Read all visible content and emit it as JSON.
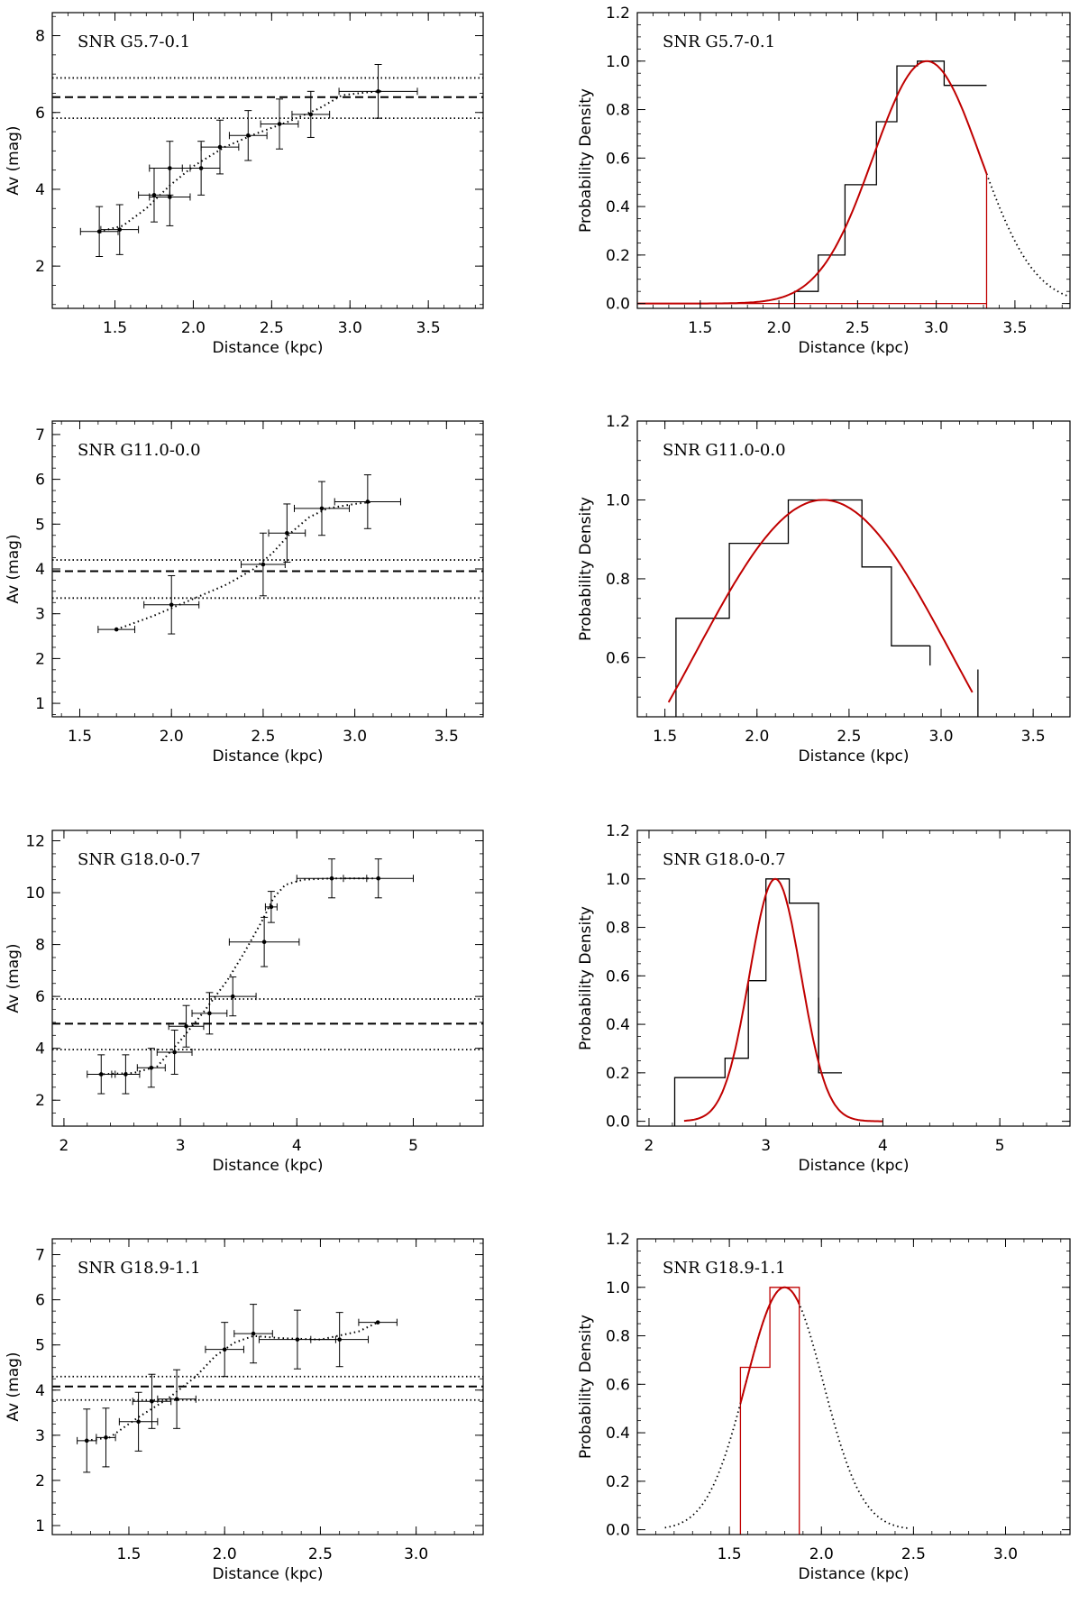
{
  "chart_data": [
    {
      "id": "g57_av",
      "type": "scatter",
      "title": "",
      "annotation": "SNR G5.7-0.1",
      "xlabel": "Distance (kpc)",
      "ylabel": "Av (mag)",
      "xlim": [
        1.1,
        3.85
      ],
      "ylim": [
        0.9,
        8.6
      ],
      "xticks": [
        1.5,
        2.0,
        2.5,
        3.0,
        3.5
      ],
      "xtick_labels": [
        "1.5",
        "2.0",
        "2.5",
        "3.0",
        "3.5"
      ],
      "yticks": [
        2,
        4,
        6,
        8
      ],
      "ytick_labels": [
        "2",
        "4",
        "6",
        "8"
      ],
      "xminor": 0.1,
      "yminor": 0.5,
      "hlines": [
        {
          "y": 6.4,
          "style": "dashed"
        },
        {
          "y": 6.9,
          "style": "dotted"
        },
        {
          "y": 5.85,
          "style": "dotted"
        }
      ],
      "points": [
        {
          "x": 1.4,
          "y": 2.9,
          "xerr": 0.12,
          "yerr": 0.65
        },
        {
          "x": 1.53,
          "y": 2.95,
          "xerr": 0.12,
          "yerr": 0.65
        },
        {
          "x": 1.75,
          "y": 3.85,
          "xerr": 0.1,
          "yerr": 0.7
        },
        {
          "x": 1.85,
          "y": 3.8,
          "xerr": 0.13,
          "yerr": 0.75
        },
        {
          "x": 1.85,
          "y": 4.55,
          "xerr": 0.13,
          "yerr": 0.7
        },
        {
          "x": 2.05,
          "y": 4.55,
          "xerr": 0.12,
          "yerr": 0.7
        },
        {
          "x": 2.17,
          "y": 5.1,
          "xerr": 0.12,
          "yerr": 0.7
        },
        {
          "x": 2.35,
          "y": 5.4,
          "xerr": 0.12,
          "yerr": 0.65
        },
        {
          "x": 2.55,
          "y": 5.7,
          "xerr": 0.12,
          "yerr": 0.65
        },
        {
          "x": 2.75,
          "y": 5.95,
          "xerr": 0.12,
          "yerr": 0.6
        },
        {
          "x": 3.18,
          "y": 6.55,
          "xerr": 0.25,
          "yerr": 0.7
        }
      ],
      "model_curve": {
        "style": "dotted",
        "x": [
          1.4,
          1.55,
          1.7,
          1.85,
          2.0,
          2.2,
          2.4,
          2.6,
          2.8,
          2.95,
          3.1,
          3.2
        ],
        "y": [
          2.9,
          3.05,
          3.5,
          4.1,
          4.6,
          5.1,
          5.45,
          5.75,
          6.1,
          6.45,
          6.52,
          6.55
        ]
      }
    },
    {
      "id": "g57_pdf",
      "type": "step",
      "title": "",
      "annotation": "SNR G5.7-0.1",
      "xlabel": "Distance (kpc)",
      "ylabel": "Probability Density",
      "xlim": [
        1.1,
        3.85
      ],
      "ylim": [
        -0.02,
        1.2
      ],
      "xticks": [
        1.5,
        2.0,
        2.5,
        3.0,
        3.5
      ],
      "xtick_labels": [
        "1.5",
        "2.0",
        "2.5",
        "3.0",
        "3.5"
      ],
      "yticks": [
        0.0,
        0.2,
        0.4,
        0.6,
        0.8,
        1.0,
        1.2
      ],
      "ytick_labels": [
        "0.0",
        "0.2",
        "0.4",
        "0.6",
        "0.8",
        "1.0",
        "1.2"
      ],
      "xminor": 0.1,
      "yminor": 0.05,
      "histogram": {
        "edges": [
          2.1,
          2.25,
          2.42,
          2.62,
          2.75,
          2.88,
          3.05,
          3.32
        ],
        "values": [
          0.05,
          0.2,
          0.49,
          0.75,
          0.98,
          1.0,
          0.9
        ]
      },
      "gaussian": {
        "mu": 2.94,
        "sigma": 0.34,
        "amp": 1.0,
        "red_range": [
          1.1,
          3.32
        ],
        "dotted_range": [
          3.32,
          3.85
        ],
        "red_drop_x": 3.32
      }
    },
    {
      "id": "g110_av",
      "type": "scatter",
      "title": "",
      "annotation": "SNR G11.0-0.0",
      "xlabel": "Distance (kpc)",
      "ylabel": "Av (mag)",
      "xlim": [
        1.35,
        3.7
      ],
      "ylim": [
        0.7,
        7.3
      ],
      "xticks": [
        1.5,
        2.0,
        2.5,
        3.0,
        3.5
      ],
      "xtick_labels": [
        "1.5",
        "2.0",
        "2.5",
        "3.0",
        "3.5"
      ],
      "yticks": [
        1,
        2,
        3,
        4,
        5,
        6,
        7
      ],
      "ytick_labels": [
        "1",
        "2",
        "3",
        "4",
        "5",
        "6",
        "7"
      ],
      "xminor": 0.1,
      "yminor": 0.25,
      "hlines": [
        {
          "y": 3.95,
          "style": "dashed"
        },
        {
          "y": 4.2,
          "style": "dotted"
        },
        {
          "y": 3.35,
          "style": "dotted"
        }
      ],
      "points": [
        {
          "x": 1.7,
          "y": 2.65,
          "xerr": 0.1,
          "yerr": 0.0
        },
        {
          "x": 2.0,
          "y": 3.2,
          "xerr": 0.15,
          "yerr": 0.65
        },
        {
          "x": 2.5,
          "y": 4.1,
          "xerr": 0.12,
          "yerr": 0.7
        },
        {
          "x": 2.63,
          "y": 4.8,
          "xerr": 0.1,
          "yerr": 0.65
        },
        {
          "x": 2.82,
          "y": 5.35,
          "xerr": 0.15,
          "yerr": 0.6
        },
        {
          "x": 3.07,
          "y": 5.5,
          "xerr": 0.18,
          "yerr": 0.6
        }
      ],
      "model_curve": {
        "style": "dotted",
        "x": [
          1.7,
          1.9,
          2.1,
          2.3,
          2.45,
          2.55,
          2.65,
          2.75,
          2.85,
          3.0,
          3.1
        ],
        "y": [
          2.65,
          2.95,
          3.3,
          3.65,
          4.0,
          4.35,
          4.8,
          5.15,
          5.35,
          5.45,
          5.5
        ]
      }
    },
    {
      "id": "g110_pdf",
      "type": "step",
      "title": "",
      "annotation": "SNR G11.0-0.0",
      "xlabel": "Distance (kpc)",
      "ylabel": "Probability Density",
      "xlim": [
        1.35,
        3.7
      ],
      "ylim": [
        0.45,
        1.2
      ],
      "xticks": [
        1.5,
        2.0,
        2.5,
        3.0,
        3.5
      ],
      "xtick_labels": [
        "1.5",
        "2.0",
        "2.5",
        "3.0",
        "3.5"
      ],
      "yticks": [
        0.6,
        0.8,
        1.0,
        1.2
      ],
      "ytick_labels": [
        "0.6",
        "0.8",
        "1.0",
        "1.2"
      ],
      "xminor": 0.1,
      "yminor": 0.05,
      "histogram": {
        "edges": [
          1.56,
          1.85,
          2.17,
          2.57,
          2.73,
          2.94
        ],
        "values": [
          0.7,
          0.89,
          1.0,
          0.83,
          0.63
        ],
        "extra_bars": [
          {
            "x": 2.94,
            "y0": 0.58,
            "y1": 0.63
          },
          {
            "x": 3.2,
            "y0": 0.45,
            "y1": 0.57
          }
        ]
      },
      "gaussian": {
        "mu": 2.36,
        "sigma": 0.7,
        "amp": 1.0,
        "red_range": [
          1.52,
          3.17
        ]
      }
    },
    {
      "id": "g180_av",
      "type": "scatter",
      "title": "",
      "annotation": "SNR G18.0-0.7",
      "xlabel": "Distance (kpc)",
      "ylabel": "Av (mag)",
      "xlim": [
        1.9,
        5.6
      ],
      "ylim": [
        1.0,
        12.4
      ],
      "xticks": [
        2,
        3,
        4,
        5
      ],
      "xtick_labels": [
        "2",
        "3",
        "4",
        "5"
      ],
      "yticks": [
        2,
        4,
        6,
        8,
        10,
        12
      ],
      "ytick_labels": [
        "2",
        "4",
        "6",
        "8",
        "10",
        "12"
      ],
      "xminor": 0.2,
      "yminor": 0.5,
      "hlines": [
        {
          "y": 4.95,
          "style": "dashed"
        },
        {
          "y": 5.9,
          "style": "dotted"
        },
        {
          "y": 3.95,
          "style": "dotted"
        }
      ],
      "points": [
        {
          "x": 2.32,
          "y": 3.0,
          "xerr": 0.12,
          "yerr": 0.75
        },
        {
          "x": 2.53,
          "y": 3.0,
          "xerr": 0.12,
          "yerr": 0.75
        },
        {
          "x": 2.75,
          "y": 3.25,
          "xerr": 0.12,
          "yerr": 0.75
        },
        {
          "x": 2.95,
          "y": 3.85,
          "xerr": 0.15,
          "yerr": 0.85
        },
        {
          "x": 3.05,
          "y": 4.85,
          "xerr": 0.15,
          "yerr": 0.8
        },
        {
          "x": 3.25,
          "y": 5.35,
          "xerr": 0.15,
          "yerr": 0.8
        },
        {
          "x": 3.45,
          "y": 6.0,
          "xerr": 0.2,
          "yerr": 0.75
        },
        {
          "x": 3.72,
          "y": 8.1,
          "xerr": 0.3,
          "yerr": 0.95
        },
        {
          "x": 3.78,
          "y": 9.45,
          "xerr": 0.05,
          "yerr": 0.6
        },
        {
          "x": 4.3,
          "y": 10.55,
          "xerr": 0.3,
          "yerr": 0.75
        },
        {
          "x": 4.7,
          "y": 10.55,
          "xerr": 0.3,
          "yerr": 0.75
        }
      ],
      "model_curve": {
        "style": "dotted",
        "x": [
          2.3,
          2.6,
          2.8,
          3.0,
          3.2,
          3.4,
          3.55,
          3.7,
          3.8,
          3.9,
          4.05,
          4.3,
          4.7
        ],
        "y": [
          3.0,
          3.05,
          3.3,
          4.3,
          5.4,
          6.6,
          7.7,
          8.9,
          9.8,
          10.3,
          10.5,
          10.55,
          10.55
        ]
      }
    },
    {
      "id": "g180_pdf",
      "type": "step",
      "title": "",
      "annotation": "SNR G18.0-0.7",
      "xlabel": "Distance (kpc)",
      "ylabel": "Probability Density",
      "xlim": [
        1.9,
        5.6
      ],
      "ylim": [
        -0.02,
        1.2
      ],
      "xticks": [
        2,
        3,
        4,
        5
      ],
      "xtick_labels": [
        "2",
        "3",
        "4",
        "5"
      ],
      "yticks": [
        0.0,
        0.2,
        0.4,
        0.6,
        0.8,
        1.0,
        1.2
      ],
      "ytick_labels": [
        "0.0",
        "0.2",
        "0.4",
        "0.6",
        "0.8",
        "1.0",
        "1.2"
      ],
      "xminor": 0.2,
      "yminor": 0.05,
      "histogram": {
        "edges": [
          2.22,
          2.45,
          2.65,
          2.85,
          3.0,
          3.2,
          3.45,
          3.65
        ],
        "values": [
          0.18,
          0.18,
          0.26,
          0.58,
          1.0,
          0.9,
          0.2
        ],
        "extra_bars": [
          {
            "x": 3.45,
            "y0": 0.2,
            "y1": 0.51
          }
        ]
      },
      "gaussian": {
        "mu": 3.08,
        "sigma": 0.22,
        "amp": 1.0,
        "red_range": [
          2.3,
          4.0
        ]
      }
    },
    {
      "id": "g189_av",
      "type": "scatter",
      "title": "",
      "annotation": "SNR G18.9-1.1",
      "xlabel": "Distance (kpc)",
      "ylabel": "Av (mag)",
      "xlim": [
        1.1,
        3.35
      ],
      "ylim": [
        0.8,
        7.35
      ],
      "xticks": [
        1.5,
        2.0,
        2.5,
        3.0
      ],
      "xtick_labels": [
        "1.5",
        "2.0",
        "2.5",
        "3.0"
      ],
      "yticks": [
        1,
        2,
        3,
        4,
        5,
        6,
        7
      ],
      "ytick_labels": [
        "1",
        "2",
        "3",
        "4",
        "5",
        "6",
        "7"
      ],
      "xminor": 0.1,
      "yminor": 0.25,
      "hlines": [
        {
          "y": 4.08,
          "style": "dashed"
        },
        {
          "y": 4.3,
          "style": "dotted"
        },
        {
          "y": 3.78,
          "style": "dotted"
        }
      ],
      "points": [
        {
          "x": 1.28,
          "y": 2.88,
          "xerr": 0.05,
          "yerr": 0.7
        },
        {
          "x": 1.38,
          "y": 2.95,
          "xerr": 0.05,
          "yerr": 0.65
        },
        {
          "x": 1.55,
          "y": 3.3,
          "xerr": 0.1,
          "yerr": 0.65
        },
        {
          "x": 1.62,
          "y": 3.75,
          "xerr": 0.1,
          "yerr": 0.6
        },
        {
          "x": 1.75,
          "y": 3.8,
          "xerr": 0.1,
          "yerr": 0.65
        },
        {
          "x": 2.0,
          "y": 4.9,
          "xerr": 0.1,
          "yerr": 0.6
        },
        {
          "x": 2.15,
          "y": 5.25,
          "xerr": 0.1,
          "yerr": 0.65
        },
        {
          "x": 2.38,
          "y": 5.12,
          "xerr": 0.2,
          "yerr": 0.65
        },
        {
          "x": 2.6,
          "y": 5.12,
          "xerr": 0.15,
          "yerr": 0.6
        },
        {
          "x": 2.8,
          "y": 5.5,
          "xerr": 0.1,
          "yerr": 0.0
        }
      ],
      "model_curve": {
        "style": "dotted",
        "x": [
          1.28,
          1.4,
          1.55,
          1.7,
          1.85,
          1.95,
          2.05,
          2.15,
          2.3,
          2.5,
          2.7,
          2.8
        ],
        "y": [
          2.88,
          2.95,
          3.4,
          3.8,
          4.3,
          4.75,
          5.05,
          5.2,
          5.15,
          5.12,
          5.3,
          5.5
        ]
      }
    },
    {
      "id": "g189_pdf",
      "type": "step",
      "title": "",
      "annotation": "SNR G18.9-1.1",
      "xlabel": "Distance (kpc)",
      "ylabel": "Probability Density",
      "xlim": [
        1.0,
        3.35
      ],
      "ylim": [
        -0.02,
        1.2
      ],
      "xticks": [
        1.5,
        2.0,
        2.5,
        3.0
      ],
      "xtick_labels": [
        "1.5",
        "2.0",
        "2.5",
        "3.0"
      ],
      "yticks": [
        0.0,
        0.2,
        0.4,
        0.6,
        0.8,
        1.0,
        1.2
      ],
      "ytick_labels": [
        "0.0",
        "0.2",
        "0.4",
        "0.6",
        "0.8",
        "1.0",
        "1.2"
      ],
      "xminor": 0.1,
      "yminor": 0.05,
      "histogram": {
        "edges": [
          1.56,
          1.72,
          1.88
        ],
        "values": [
          0.67,
          1.0
        ],
        "red_outline": true
      },
      "gaussian": {
        "mu": 1.8,
        "sigma": 0.21,
        "amp": 1.0,
        "red_range": [
          1.56,
          1.88
        ],
        "dotted_range": [
          1.15,
          2.48
        ]
      }
    }
  ]
}
